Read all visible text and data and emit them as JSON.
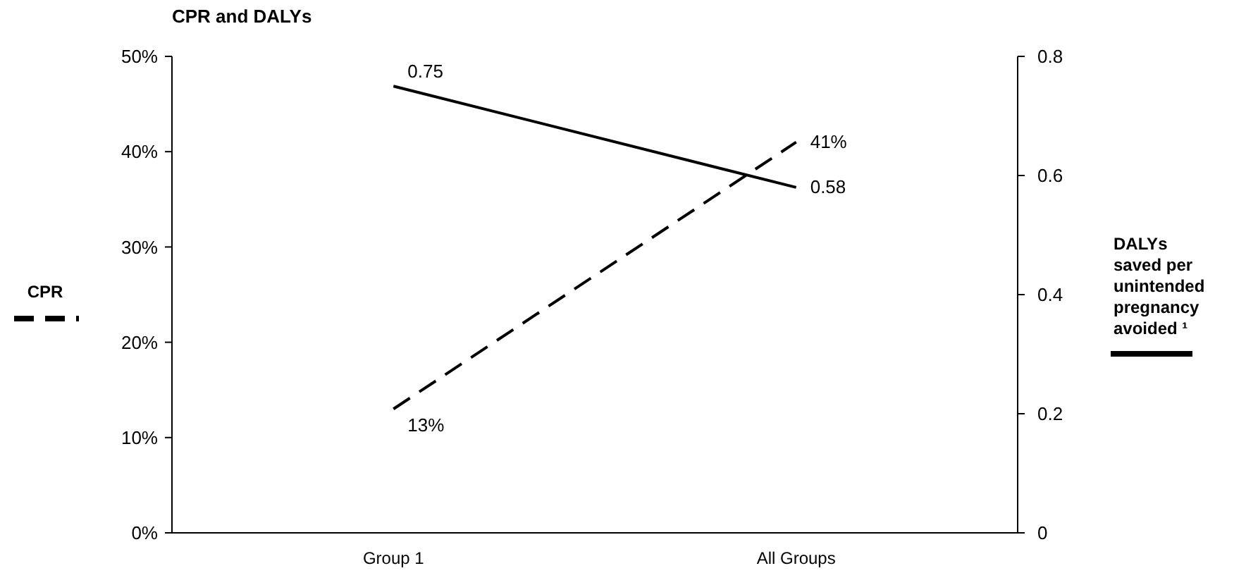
{
  "chart_data": {
    "type": "line",
    "title": "CPR and DALYs",
    "categories": [
      "Group 1",
      "All Groups"
    ],
    "series": [
      {
        "color": "#000000",
        "line_style": "dashed",
        "values": [
          13,
          41
        ],
        "value_labels": [
          "13%",
          "41%"
        ]
      },
      {
        "color": "#000000",
        "line_style": "solid",
        "axis": "y2",
        "values": [
          0.75,
          0.58
        ],
        "value_labels": [
          "0.75",
          "0.58"
        ]
      }
    ],
    "ylabel": "CPR",
    "y2label": "DALYs saved per unintended pregnancy avoided ¹",
    "ylim": [
      0,
      50
    ],
    "yticks": [
      {
        "value": 0,
        "label": "0%"
      },
      {
        "value": 10,
        "label": "10%"
      },
      {
        "value": 20,
        "label": "20%"
      },
      {
        "value": 30,
        "label": "30%"
      },
      {
        "value": 40,
        "label": "40%"
      },
      {
        "value": 50,
        "label": "50%"
      }
    ],
    "y2lim": [
      0,
      0.8
    ],
    "y2ticks": [
      0,
      0.2,
      0.4,
      0.6,
      0.8
    ],
    "grid": false,
    "marker": "none"
  }
}
